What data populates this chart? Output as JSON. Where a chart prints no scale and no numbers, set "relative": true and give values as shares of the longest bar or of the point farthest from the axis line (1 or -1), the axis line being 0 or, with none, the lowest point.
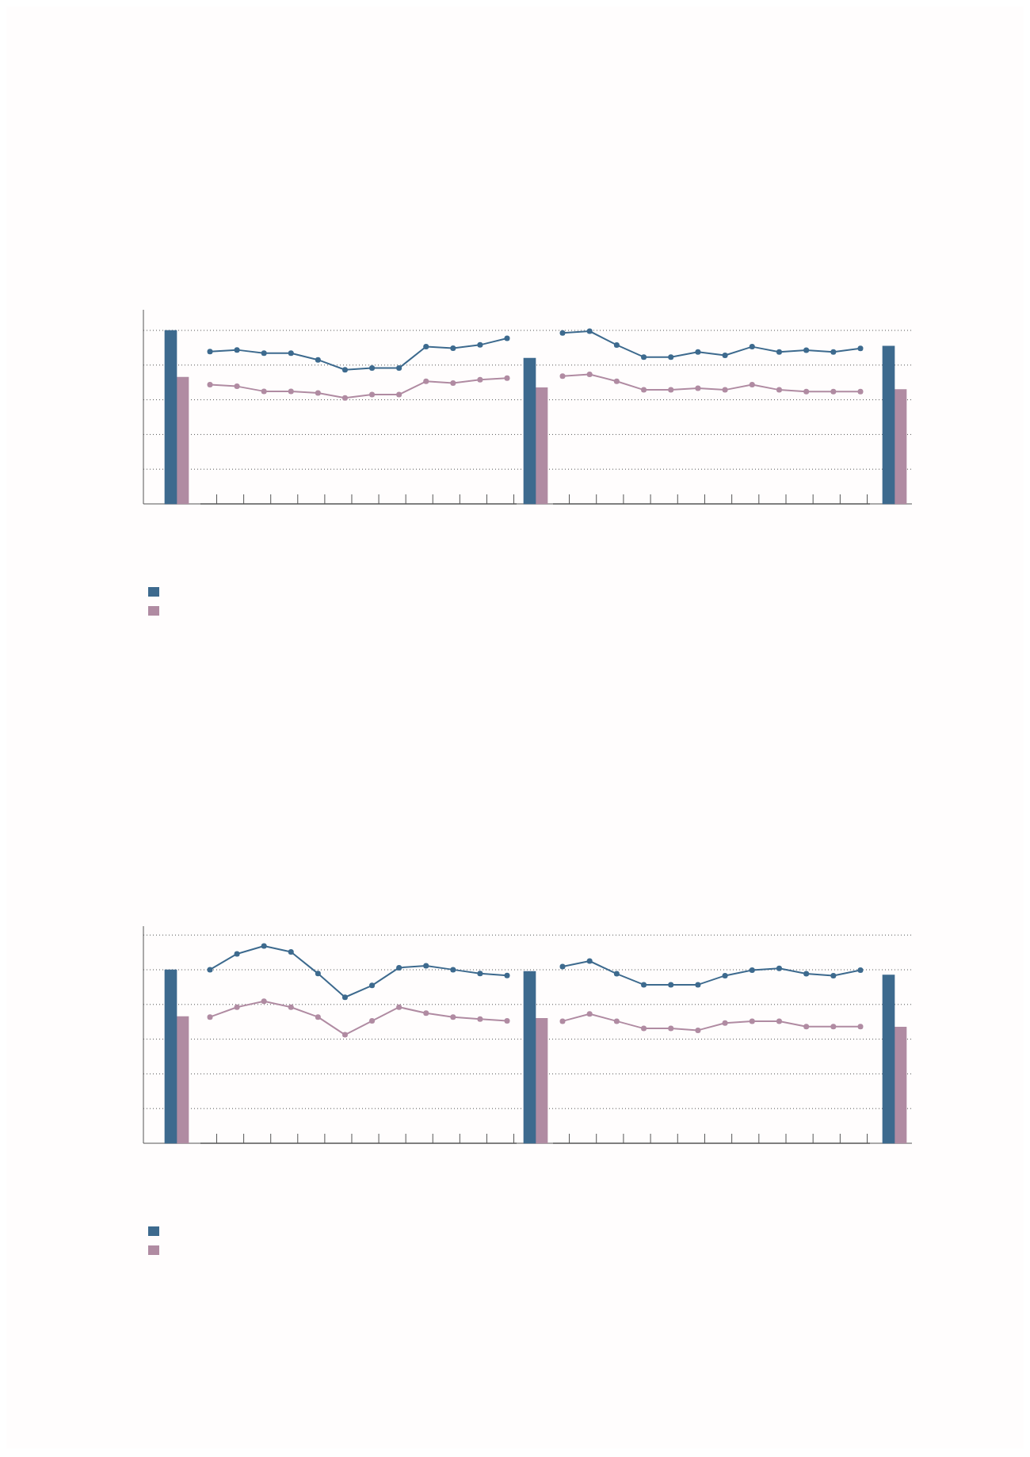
{
  "chart_data": [
    {
      "type": "bar",
      "relative": true,
      "grid": "y",
      "categories": [
        null,
        null,
        null
      ],
      "series": [
        {
          "color": "#3d6a8e",
          "values": [
            1.0,
            0.84,
            0.91
          ]
        },
        {
          "color": "#b08ba2",
          "values": [
            0.73,
            0.67,
            0.66
          ]
        }
      ]
    },
    {
      "type": "line",
      "relative": true,
      "marker": "circle",
      "categories": [
        null,
        null,
        null,
        null,
        null,
        null,
        null,
        null,
        null,
        null,
        null,
        null
      ],
      "series": [
        {
          "color": "#3d6a8e",
          "values": [
            0.92,
            0.93,
            0.91,
            0.91,
            0.87,
            0.81,
            0.82,
            0.82,
            0.95,
            0.94,
            0.96,
            1.0
          ]
        },
        {
          "color": "#b08ba2",
          "values": [
            0.72,
            0.71,
            0.68,
            0.68,
            0.67,
            0.64,
            0.66,
            0.66,
            0.74,
            0.73,
            0.75,
            0.76
          ]
        }
      ]
    },
    {
      "type": "line",
      "relative": true,
      "marker": "circle",
      "categories": [
        null,
        null,
        null,
        null,
        null,
        null,
        null,
        null,
        null,
        null,
        null,
        null
      ],
      "series": [
        {
          "color": "#3d6a8e",
          "values": [
            0.99,
            1.0,
            0.92,
            0.85,
            0.85,
            0.88,
            0.86,
            0.91,
            0.88,
            0.89,
            0.88,
            0.9
          ]
        },
        {
          "color": "#b08ba2",
          "values": [
            0.74,
            0.75,
            0.71,
            0.66,
            0.66,
            0.67,
            0.66,
            0.69,
            0.66,
            0.65,
            0.65,
            0.65
          ]
        }
      ]
    },
    {
      "type": "bar",
      "relative": true,
      "grid": "y",
      "categories": [
        null,
        null,
        null
      ],
      "series": [
        {
          "color": "#3d6a8e",
          "values": [
            1.0,
            0.99,
            0.97
          ]
        },
        {
          "color": "#b08ba2",
          "values": [
            0.73,
            0.72,
            0.67
          ]
        }
      ]
    },
    {
      "type": "line",
      "relative": true,
      "marker": "circle",
      "categories": [
        null,
        null,
        null,
        null,
        null,
        null,
        null,
        null,
        null,
        null,
        null,
        null
      ],
      "series": [
        {
          "color": "#3d6a8e",
          "values": [
            0.88,
            0.96,
            1.0,
            0.97,
            0.86,
            0.74,
            0.8,
            0.89,
            0.9,
            0.88,
            0.86,
            0.85
          ]
        },
        {
          "color": "#b08ba2",
          "values": [
            0.64,
            0.69,
            0.72,
            0.69,
            0.64,
            0.55,
            0.62,
            0.69,
            0.66,
            0.64,
            0.63,
            0.62
          ]
        }
      ]
    },
    {
      "type": "line",
      "relative": true,
      "marker": "circle",
      "categories": [
        null,
        null,
        null,
        null,
        null,
        null,
        null,
        null,
        null,
        null,
        null,
        null
      ],
      "series": [
        {
          "color": "#3d6a8e",
          "values": [
            0.97,
            1.0,
            0.93,
            0.87,
            0.87,
            0.87,
            0.92,
            0.95,
            0.96,
            0.93,
            0.92,
            0.95
          ]
        },
        {
          "color": "#b08ba2",
          "values": [
            0.67,
            0.71,
            0.67,
            0.63,
            0.63,
            0.62,
            0.66,
            0.67,
            0.67,
            0.64,
            0.64,
            0.64
          ]
        }
      ]
    }
  ]
}
